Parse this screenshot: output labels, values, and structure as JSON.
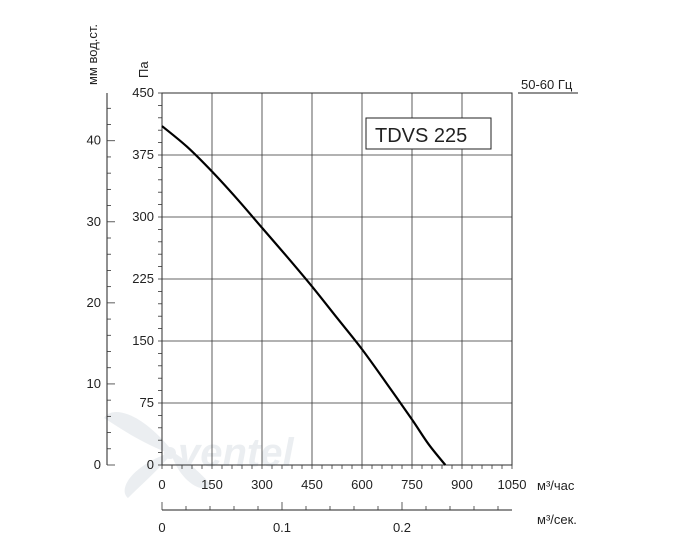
{
  "freq_label": "50-60 Гц",
  "model_box": "TDVS 225",
  "watermark": "ventel",
  "chart_data": {
    "type": "line",
    "title": "",
    "xlabel": "м³/час",
    "x2label": "м³/сек.",
    "ylabel": "Па",
    "y2label": "мм вод.ст.",
    "xlim": [
      0,
      1050
    ],
    "ylim": [
      0,
      450
    ],
    "x_ticks": [
      0,
      150,
      300,
      450,
      600,
      750,
      900,
      1050
    ],
    "y_ticks": [
      0,
      75,
      150,
      225,
      300,
      375,
      450
    ],
    "y2_ticks": [
      "0",
      "10",
      "20",
      "30",
      "40"
    ],
    "x2_ticks": [
      "0",
      "0.1",
      "0.2"
    ],
    "grid": true,
    "series": [
      {
        "x": [
          0,
          75,
          150,
          225,
          300,
          375,
          450,
          525,
          600,
          675,
          750,
          800,
          850
        ],
        "y": [
          410,
          385,
          355,
          322,
          287,
          252,
          216,
          178,
          140,
          98,
          55,
          25,
          0
        ]
      }
    ]
  }
}
